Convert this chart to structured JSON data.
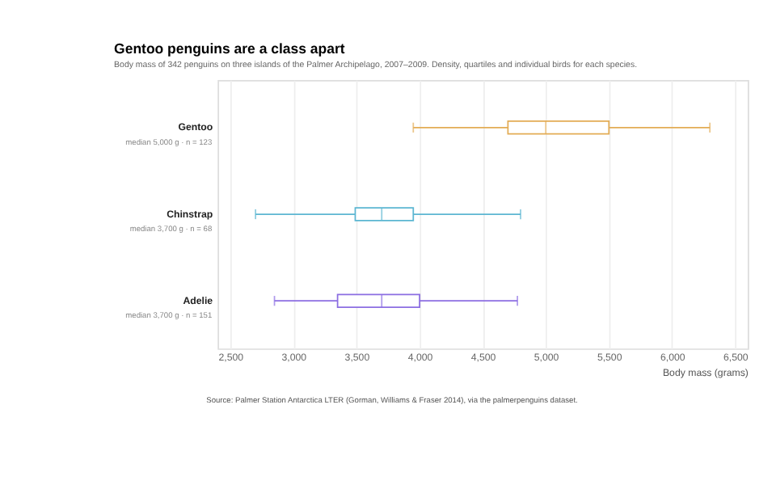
{
  "chart_data": {
    "type": "box",
    "orientation": "horizontal",
    "title": "Gentoo penguins are a class apart",
    "subtitle": "Body mass of 342 penguins on three islands of the Palmer Archipelago, 2007–2009. Density, quartiles and individual birds for each species.",
    "xlabel": "Body mass (grams)",
    "categories": [
      "Gentoo",
      "Chinstrap",
      "Adelie"
    ],
    "colors": [
      "#e3ac55",
      "#5cb6d2",
      "#8c6ee2"
    ],
    "boxes": [
      {
        "low": 3950,
        "q1": 4700,
        "median": 5000,
        "q3": 5500,
        "high": 6300
      },
      {
        "low": 2700,
        "q1": 3490,
        "median": 3700,
        "q3": 3950,
        "high": 4800
      },
      {
        "low": 2850,
        "q1": 3350,
        "median": 3700,
        "q3": 4000,
        "high": 4775
      }
    ],
    "xlim": [
      2400,
      6600
    ],
    "xticks": [
      {
        "value": 2500,
        "label": "2,500"
      },
      {
        "value": 3000,
        "label": "3,000"
      },
      {
        "value": 3500,
        "label": "3,500"
      },
      {
        "value": 4000,
        "label": "4,000"
      },
      {
        "value": 4500,
        "label": "4,500"
      },
      {
        "value": 5000,
        "label": "5,000"
      },
      {
        "value": 5500,
        "label": "5,500"
      },
      {
        "value": 6000,
        "label": "6,000"
      },
      {
        "value": 6500,
        "label": "6,500"
      }
    ],
    "grid": "x",
    "legend": false,
    "annotations": [
      "median 5,000 g · n = 123",
      "median 3,700 g · n = 68",
      "median 3,700 g · n = 151",
      "Source: Palmer Station Antarctica LTER (Gorman, Williams & Fraser 2014), via the palmerpenguins dataset."
    ]
  }
}
